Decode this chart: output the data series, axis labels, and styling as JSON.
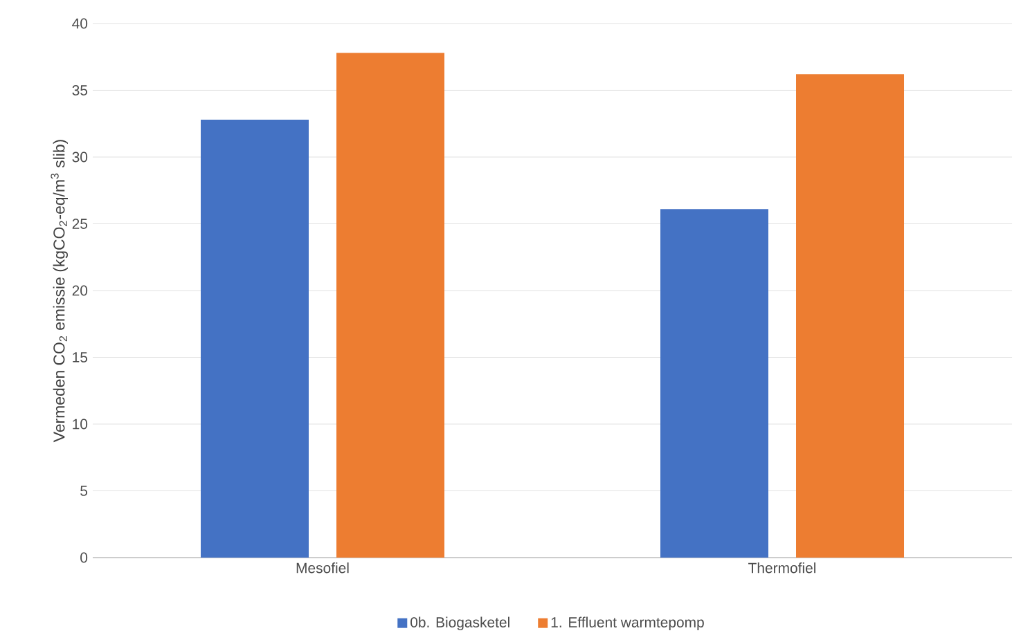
{
  "chart_data": {
    "type": "bar",
    "ylabel": "Vermeden CO$_{2}$ emissie (kgCO$_{2}$-eq/m$^{3}$ slib)",
    "categories": [
      "Mesofiel",
      "Thermofiel"
    ],
    "series": [
      {
        "name": "0b. Biogasketel",
        "color": "#4472c4",
        "values": [
          32.8,
          26.1
        ]
      },
      {
        "name": "1. Effluent warmtepomp",
        "color": "#ed7d31",
        "values": [
          37.8,
          36.2
        ]
      }
    ],
    "ylim": [
      0,
      40
    ],
    "yticks": [
      0,
      5,
      10,
      15,
      20,
      25,
      30,
      35,
      40
    ],
    "grid": "y",
    "legend": "bottom"
  }
}
